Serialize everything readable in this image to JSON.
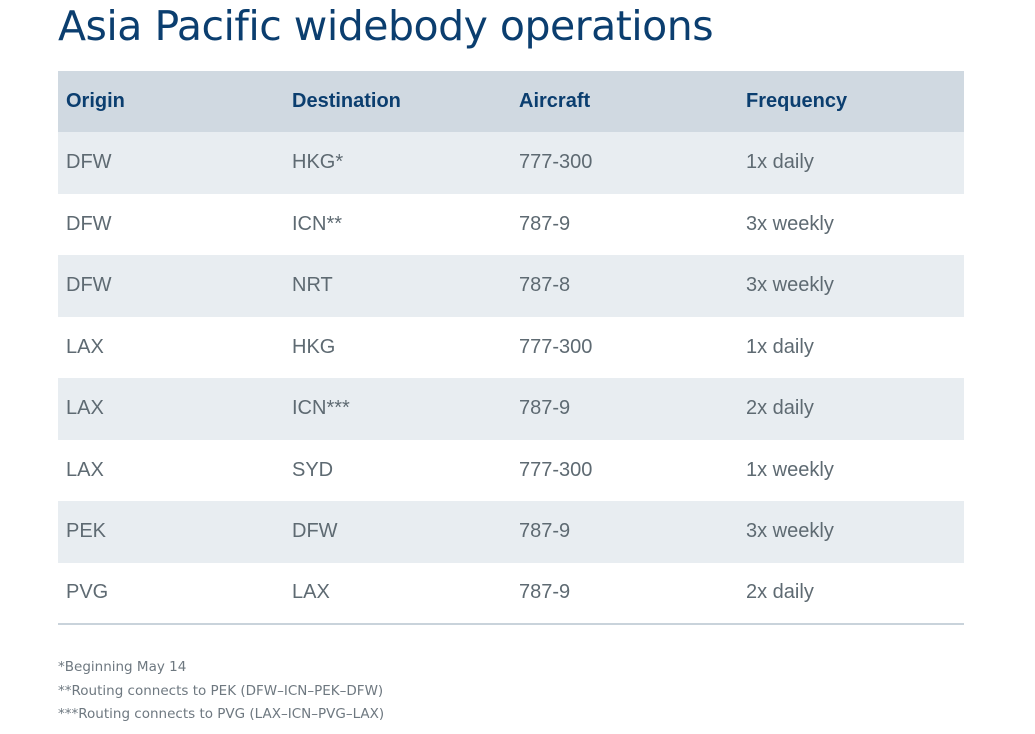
{
  "title": "Asia Pacific widebody operations",
  "table": {
    "headers": [
      "Origin",
      "Destination",
      "Aircraft",
      "Frequency"
    ],
    "rows": [
      [
        "DFW",
        "HKG*",
        "777-300",
        "1x daily"
      ],
      [
        "DFW",
        "ICN**",
        "787-9",
        "3x weekly"
      ],
      [
        "DFW",
        "NRT",
        "787-8",
        "3x weekly"
      ],
      [
        "LAX",
        "HKG",
        "777-300",
        "1x daily"
      ],
      [
        "LAX",
        "ICN***",
        "787-9",
        "2x daily"
      ],
      [
        "LAX",
        "SYD",
        "777-300",
        "1x weekly"
      ],
      [
        "PEK",
        "DFW",
        "787-9",
        "3x weekly"
      ],
      [
        "PVG",
        "LAX",
        "787-9",
        "2x daily"
      ]
    ]
  },
  "footnotes": [
    "*Beginning May 14",
    "**Routing connects to PEK (DFW–ICN–PEK–DFW)",
    "***Routing connects to PVG (LAX–ICN–PVG–LAX)"
  ],
  "colors": {
    "title": "#0b3e6f",
    "header_background": "#d0d9e1",
    "stripe_background": "#e8edf1",
    "cell_text": "#5e6a72"
  }
}
